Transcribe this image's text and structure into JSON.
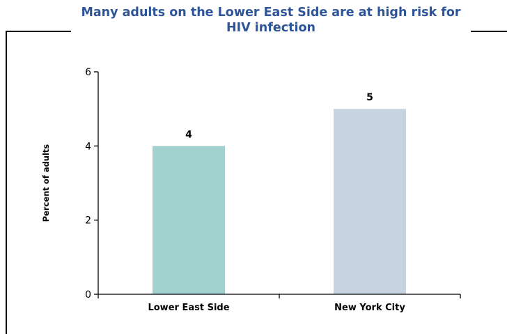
{
  "chart_data": {
    "type": "bar",
    "title": "Many adults on the Lower East Side are at high risk for HIV infection",
    "ylabel": "Percent of adults",
    "xlabel": "",
    "categories": [
      "Lower East Side",
      "New York City"
    ],
    "values": [
      4,
      5
    ],
    "data_labels": [
      "4",
      "5"
    ],
    "ylim": [
      0,
      6
    ],
    "yticks": [
      0,
      2,
      4,
      6
    ],
    "colors": [
      "#a2d2d0",
      "#c8d3e0"
    ],
    "grid": false,
    "legend": "none"
  }
}
